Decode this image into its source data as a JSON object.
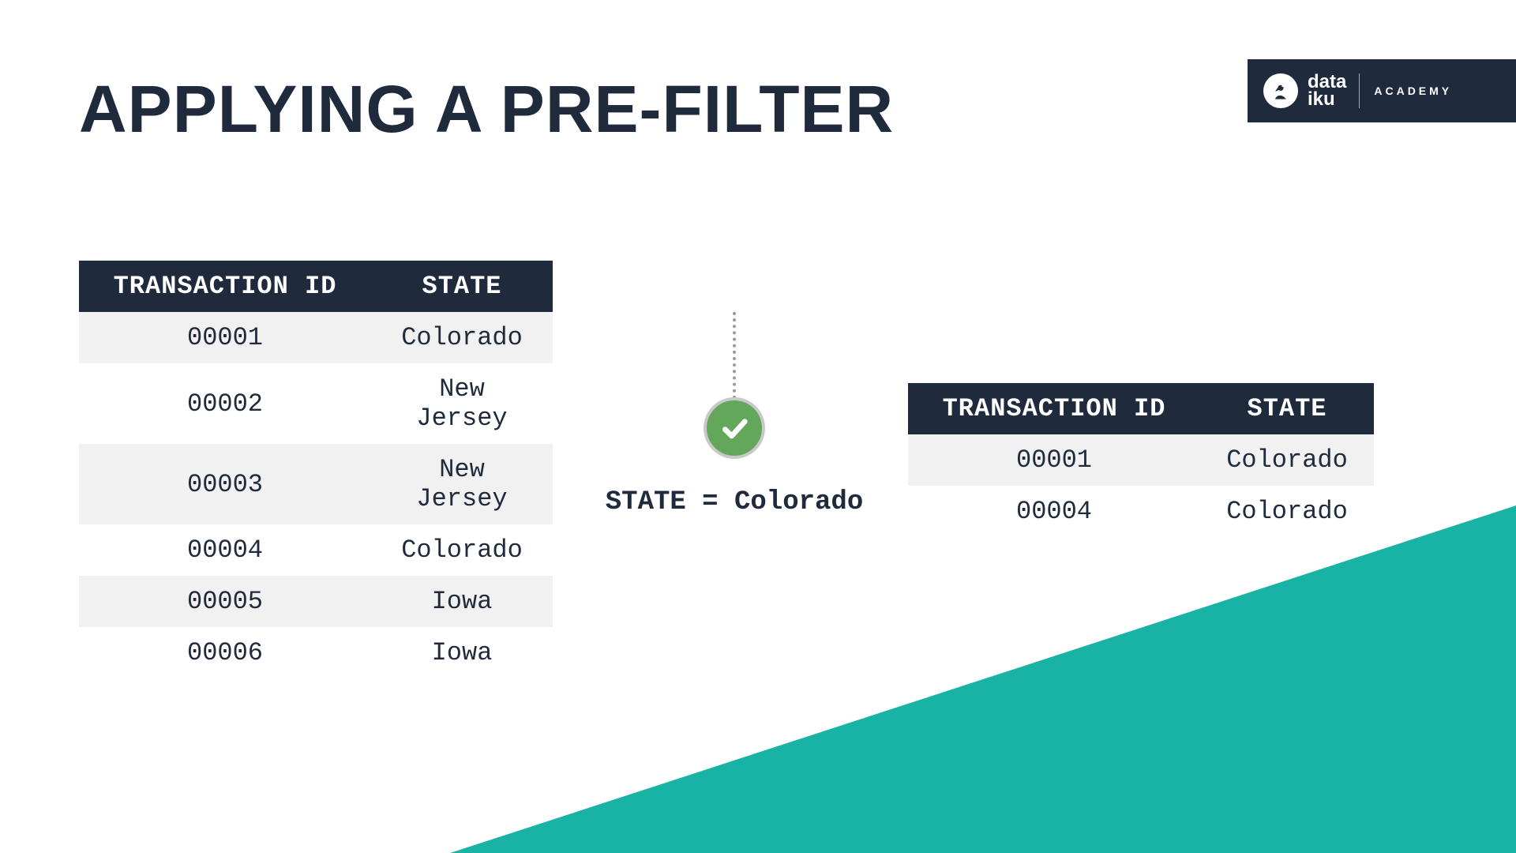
{
  "title": "APPLYING A PRE-FILTER",
  "logo": {
    "line1": "data",
    "line2": "iku",
    "sub": "ACADEMY"
  },
  "left_table": {
    "columns": [
      "TRANSACTION ID",
      "STATE"
    ],
    "rows": [
      [
        "00001",
        "Colorado"
      ],
      [
        "00002",
        "New Jersey"
      ],
      [
        "00003",
        "New Jersey"
      ],
      [
        "00004",
        "Colorado"
      ],
      [
        "00005",
        "Iowa"
      ],
      [
        "00006",
        "Iowa"
      ]
    ]
  },
  "right_table": {
    "columns": [
      "TRANSACTION ID",
      "STATE"
    ],
    "rows": [
      [
        "00001",
        "Colorado"
      ],
      [
        "00004",
        "Colorado"
      ]
    ]
  },
  "filter": {
    "label": "STATE = Colorado"
  },
  "colors": {
    "header_bg": "#1f2a3c",
    "row_alt_bg": "#f1f1f1",
    "accent_teal": "#19b3a6",
    "check_green": "#63a75b",
    "dotted_grey": "#9a9a9a"
  }
}
